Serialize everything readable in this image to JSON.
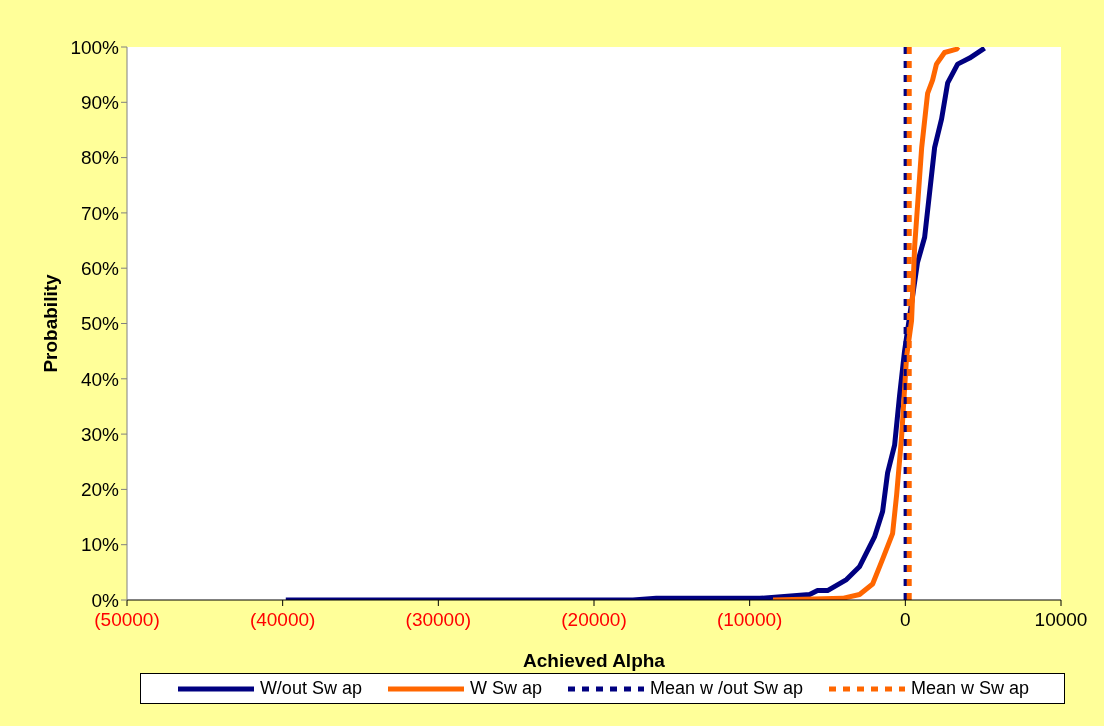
{
  "chart_data": {
    "type": "line",
    "xlabel": "Achieved Alpha",
    "ylabel": "Probability",
    "xlim": [
      -50000,
      10000
    ],
    "xticks": [
      {
        "value": -50000,
        "label": "(50000)"
      },
      {
        "value": -40000,
        "label": "(40000)"
      },
      {
        "value": -30000,
        "label": "(30000)"
      },
      {
        "value": -20000,
        "label": "(20000)"
      },
      {
        "value": -10000,
        "label": "(10000)"
      },
      0,
      10000
    ],
    "ylim": [
      0,
      100
    ],
    "yticks": [
      {
        "value": 0,
        "label": "0%"
      },
      {
        "value": 10,
        "label": "10%"
      },
      {
        "value": 20,
        "label": "20%"
      },
      {
        "value": 30,
        "label": "30%"
      },
      {
        "value": 40,
        "label": "40%"
      },
      {
        "value": 50,
        "label": "50%"
      },
      {
        "value": 60,
        "label": "60%"
      },
      {
        "value": 70,
        "label": "70%"
      },
      {
        "value": 80,
        "label": "80%"
      },
      {
        "value": 90,
        "label": "90%"
      },
      {
        "value": 100,
        "label": "100%"
      }
    ],
    "legend": "bottom",
    "marker": "none",
    "series": [
      {
        "name": "W/out Sw ap",
        "color": "#000080",
        "line_style": "solid",
        "x": [
          -39800,
          -17500,
          -16000,
          -9350,
          -6150,
          -5640,
          -5000,
          -3780,
          -2950,
          -1980,
          -1460,
          -1140,
          -690,
          -370,
          -50,
          780,
          1240,
          1880,
          2330,
          2720,
          3360,
          4130,
          5090
        ],
        "values": [
          0,
          0,
          0.3,
          0.3,
          1,
          1.7,
          1.7,
          3.7,
          6,
          11.4,
          16,
          23,
          28,
          37,
          45,
          61,
          65.6,
          81.8,
          87,
          93.5,
          96.9,
          98,
          99.8
        ]
      },
      {
        "name": "W Sw ap",
        "color": "#ff6600",
        "line_style": "solid",
        "x": [
          -8500,
          -4030,
          -2940,
          -2100,
          -1460,
          -820,
          -560,
          -240,
          80,
          400,
          600,
          1050,
          1430,
          1750,
          2000,
          2520,
          3290,
          3400
        ],
        "values": [
          0,
          0.3,
          1,
          2.9,
          7.4,
          12,
          19,
          29.5,
          44,
          50.5,
          64,
          81.8,
          91.6,
          94,
          96.9,
          99,
          99.6,
          100
        ]
      },
      {
        "name": "Mean w /out Sw ap",
        "color": "#000080",
        "line_style": "dashed",
        "x": [
          50,
          50
        ],
        "values": [
          0,
          100
        ]
      },
      {
        "name": "Mean w  Sw ap",
        "color": "#ff6600",
        "line_style": "dashed",
        "x": [
          250,
          250
        ],
        "values": [
          0,
          100
        ]
      }
    ]
  }
}
